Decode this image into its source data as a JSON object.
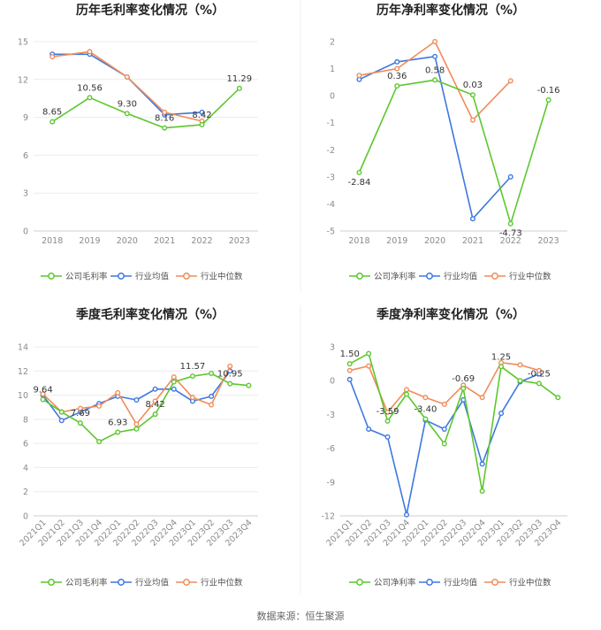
{
  "source_note": "数据来源：恒生聚源",
  "colors": {
    "company": "#5cc72e",
    "industry_avg": "#3d78e0",
    "industry_median": "#f08c5a",
    "grid": "#ececec",
    "axis": "#cfcfcf"
  },
  "chart_data": [
    {
      "type": "line",
      "title": "历年毛利率变化情况（%）",
      "categories": [
        "2018",
        "2019",
        "2020",
        "2021",
        "2022",
        "2023"
      ],
      "ylim": [
        0,
        15
      ],
      "yticks": [
        0,
        3,
        6,
        9,
        12,
        15
      ],
      "ytick_labels": [
        "0",
        "3",
        "6",
        "9",
        "12",
        "15"
      ],
      "grid": true,
      "legend_position": "bottom",
      "series": [
        {
          "name": "公司毛利率",
          "color_key": "company",
          "values": [
            8.65,
            10.56,
            9.3,
            8.16,
            8.42,
            11.29
          ],
          "labels": [
            "8.65",
            "10.56",
            "9.30",
            "8.16",
            "8.42",
            "11.29"
          ]
        },
        {
          "name": "行业均值",
          "color_key": "industry_avg",
          "values": [
            14.0,
            14.0,
            12.2,
            9.2,
            9.4,
            null
          ]
        },
        {
          "name": "行业中位数",
          "color_key": "industry_median",
          "values": [
            13.8,
            14.2,
            12.2,
            9.4,
            8.7,
            null
          ]
        }
      ]
    },
    {
      "type": "line",
      "title": "历年净利率变化情况（%）",
      "categories": [
        "2018",
        "2019",
        "2020",
        "2021",
        "2022",
        "2023"
      ],
      "ylim": [
        -5,
        2
      ],
      "yticks": [
        -5,
        -4,
        -3,
        -2,
        -1,
        0,
        1,
        2
      ],
      "ytick_labels": [
        "-5",
        "-4",
        "-3",
        "-2",
        "-1",
        "0",
        "1",
        "2"
      ],
      "grid": false,
      "legend_position": "bottom",
      "series": [
        {
          "name": "公司净利率",
          "color_key": "company",
          "values": [
            -2.84,
            0.36,
            0.58,
            0.03,
            -4.73,
            -0.16
          ],
          "labels": [
            "-2.84",
            "0.36",
            "0.58",
            "0.03",
            "-4.73",
            "-0.16"
          ]
        },
        {
          "name": "行业均值",
          "color_key": "industry_avg",
          "values": [
            0.6,
            1.25,
            1.45,
            -4.55,
            -3.0,
            null
          ]
        },
        {
          "name": "行业中位数",
          "color_key": "industry_median",
          "values": [
            0.75,
            1.0,
            2.0,
            -0.9,
            0.55,
            null
          ]
        }
      ]
    },
    {
      "type": "line",
      "title": "季度毛利率变化情况（%）",
      "categories": [
        "2021Q1",
        "2021Q2",
        "2021Q3",
        "2021Q4",
        "2022Q1",
        "2022Q2",
        "2022Q3",
        "2022Q4",
        "2023Q1",
        "2023Q2",
        "2023Q3",
        "2023Q4"
      ],
      "ylim": [
        0,
        14
      ],
      "yticks": [
        0,
        2,
        4,
        6,
        8,
        10,
        12,
        14
      ],
      "ytick_labels": [
        "0",
        "2",
        "4",
        "6",
        "8",
        "10",
        "12",
        "14"
      ],
      "grid": true,
      "legend_position": "bottom",
      "series": [
        {
          "name": "公司毛利率",
          "color_key": "company",
          "values": [
            9.64,
            8.6,
            7.69,
            6.15,
            6.93,
            7.2,
            8.42,
            11.1,
            11.57,
            11.8,
            10.95,
            10.8
          ],
          "labels": [
            "9.64",
            null,
            "7.69",
            null,
            "6.93",
            null,
            "8.42",
            null,
            "11.57",
            null,
            "10.95",
            null
          ]
        },
        {
          "name": "行业均值",
          "color_key": "industry_avg",
          "values": [
            10.0,
            7.9,
            8.6,
            9.3,
            9.9,
            9.6,
            10.5,
            10.5,
            9.5,
            9.9,
            12.0,
            null
          ]
        },
        {
          "name": "行业中位数",
          "color_key": "industry_median",
          "values": [
            10.1,
            8.6,
            8.9,
            9.1,
            10.2,
            7.6,
            9.5,
            11.5,
            9.8,
            9.2,
            12.4,
            null
          ]
        }
      ]
    },
    {
      "type": "line",
      "title": "季度净利率变化情况（%）",
      "categories": [
        "2021Q1",
        "2021Q2",
        "2021Q3",
        "2021Q4",
        "2022Q1",
        "2022Q2",
        "2022Q3",
        "2022Q4",
        "2023Q1",
        "2023Q2",
        "2023Q3",
        "2023Q4"
      ],
      "ylim": [
        -12,
        3
      ],
      "yticks": [
        -12,
        -9,
        -6,
        -3,
        0,
        3
      ],
      "ytick_labels": [
        "-12",
        "-9",
        "-6",
        "-3",
        "0",
        "3"
      ],
      "grid": false,
      "legend_position": "bottom",
      "series": [
        {
          "name": "公司净利率",
          "color_key": "company",
          "values": [
            1.5,
            2.4,
            -3.59,
            -1.2,
            -3.4,
            -5.6,
            -0.69,
            -9.8,
            1.25,
            0.0,
            -0.25,
            -1.5
          ],
          "labels": [
            "1.50",
            null,
            "-3.59",
            null,
            "-3.40",
            null,
            "-0.69",
            null,
            "1.25",
            null,
            "-0.25",
            null
          ]
        },
        {
          "name": "行业均值",
          "color_key": "industry_avg",
          "values": [
            0.1,
            -4.3,
            -5.0,
            -11.9,
            -3.5,
            -4.3,
            -1.7,
            -7.4,
            -2.9,
            -0.1,
            0.6,
            null
          ]
        },
        {
          "name": "行业中位数",
          "color_key": "industry_median",
          "values": [
            0.9,
            1.3,
            -2.8,
            -0.8,
            -1.5,
            -2.1,
            -0.4,
            -1.5,
            1.6,
            1.4,
            0.9,
            null
          ]
        }
      ]
    }
  ]
}
